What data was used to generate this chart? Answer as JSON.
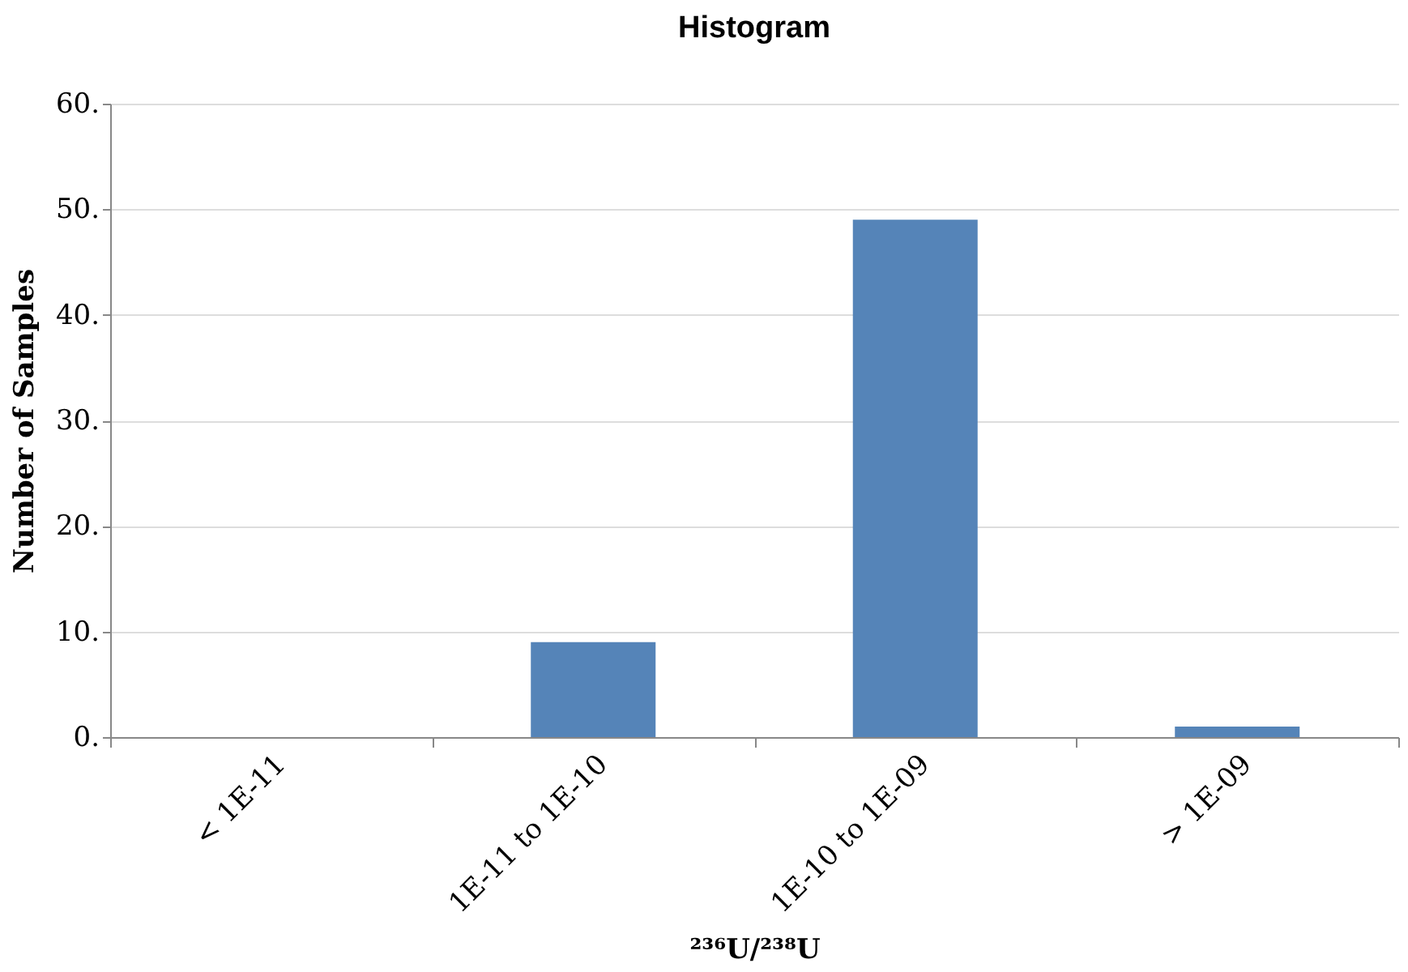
{
  "chart_data": {
    "type": "bar",
    "title": "Histogram",
    "xlabel": "²³⁶U/²³⁸U",
    "ylabel": "Number of Samples",
    "categories": [
      "< 1E-11",
      "1E-11 to 1E-10",
      "1E-10 to 1E-09",
      "> 1E-09"
    ],
    "values": [
      0,
      9,
      49,
      1
    ],
    "color": "#5584b8",
    "ylim": [
      0,
      60
    ],
    "yticks": [
      {
        "value": 0,
        "label": "0."
      },
      {
        "value": 10,
        "label": "10."
      },
      {
        "value": 20,
        "label": "20."
      },
      {
        "value": 30,
        "label": "30."
      },
      {
        "value": 40,
        "label": "40."
      },
      {
        "value": 50,
        "label": "50."
      },
      {
        "value": 60,
        "label": "60."
      }
    ],
    "grid": "y"
  }
}
